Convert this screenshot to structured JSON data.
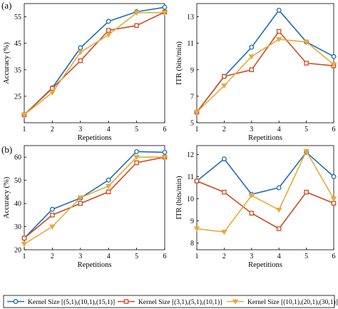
{
  "panels": [
    {
      "label": "(a)"
    },
    {
      "label": "(b)"
    }
  ],
  "legend": {
    "entries": [
      {
        "name": "Kernel Size [(5,1),(10,1),(15,1)]",
        "color": "#1f6fb2",
        "marker": "circle"
      },
      {
        "name": "Kernel Size [(3,1),(5,1),(10,1)]",
        "color": "#cc4b22",
        "marker": "square"
      },
      {
        "name": "Kernel Size [(10,1),(20,1),(30,1)]",
        "color": "#e8a93a",
        "marker": "triangle-down"
      }
    ]
  },
  "chart_data": [
    {
      "type": "line",
      "panel": "(a)",
      "xlabel": "Repetitions",
      "ylabel": "Accuracy (%)",
      "x": [
        1,
        2,
        3,
        4,
        5,
        6
      ],
      "xticks": [
        1,
        2,
        3,
        4,
        5,
        6
      ],
      "yticks": [
        25,
        35,
        45,
        55
      ],
      "ylim": [
        15,
        60
      ],
      "grid": false,
      "series": [
        {
          "name": "Kernel Size [(5,1),(10,1),(15,1)]",
          "values": [
            18,
            28.2,
            43.3,
            53.3,
            56.9,
            58.6
          ]
        },
        {
          "name": "Kernel Size [(3,1),(5,1),(10,1)]",
          "values": [
            18,
            28,
            38.4,
            49.9,
            51.7,
            56.8
          ]
        },
        {
          "name": "Kernel Size [(10,1),(20,1),(30,1)]",
          "values": [
            18,
            26.4,
            41.6,
            48.2,
            56.5,
            56.6
          ]
        }
      ]
    },
    {
      "type": "line",
      "panel": "(a)",
      "xlabel": "Repetitions",
      "ylabel": "ITR (bits/min)",
      "x": [
        1,
        2,
        3,
        4,
        5,
        6
      ],
      "xticks": [
        1,
        2,
        3,
        4,
        5,
        6
      ],
      "yticks": [
        5,
        7,
        9,
        11,
        13
      ],
      "ylim": [
        5,
        14
      ],
      "grid": false,
      "series": [
        {
          "name": "Kernel Size [(5,1),(10,1),(15,1)]",
          "values": [
            5.8,
            8.5,
            10.7,
            13.5,
            11.1,
            10.0
          ]
        },
        {
          "name": "Kernel Size [(3,1),(5,1),(10,1)]",
          "values": [
            5.8,
            8.5,
            9.0,
            11.9,
            9.5,
            9.3
          ]
        },
        {
          "name": "Kernel Size [(10,1),(20,1),(30,1)]",
          "values": [
            5.8,
            7.8,
            10.0,
            11.3,
            11.1,
            9.4
          ]
        }
      ]
    },
    {
      "type": "line",
      "panel": "(b)",
      "xlabel": "Repetitions",
      "ylabel": "Accuracy (%)",
      "x": [
        1,
        2,
        3,
        4,
        5,
        6
      ],
      "xticks": [
        1,
        2,
        3,
        4,
        5,
        6
      ],
      "yticks": [
        20,
        30,
        40,
        50,
        60
      ],
      "ylim": [
        20,
        65
      ],
      "grid": false,
      "series": [
        {
          "name": "Kernel Size [(5,1),(10,1),(15,1)]",
          "values": [
            25,
            37.5,
            42.3,
            50.1,
            62.4,
            62.1
          ]
        },
        {
          "name": "Kernel Size [(3,1),(5,1),(10,1)]",
          "values": [
            25,
            35,
            40,
            45,
            57.6,
            60
          ]
        },
        {
          "name": "Kernel Size [(10,1),(20,1),(30,1)]",
          "values": [
            22.5,
            30,
            42.5,
            47.5,
            60,
            60
          ]
        }
      ]
    },
    {
      "type": "line",
      "panel": "(b)",
      "xlabel": "Repetitions",
      "ylabel": "ITR (bits/min)",
      "x": [
        1,
        2,
        3,
        4,
        5,
        6
      ],
      "xticks": [
        1,
        2,
        3,
        4,
        5,
        6
      ],
      "yticks": [
        8,
        9,
        10,
        11,
        12
      ],
      "ylim": [
        7.7,
        12.4
      ],
      "grid": false,
      "series": [
        {
          "name": "Kernel Size [(5,1),(10,1),(15,1)]",
          "values": [
            10.8,
            11.8,
            10.2,
            10.5,
            12.1,
            11.0
          ]
        },
        {
          "name": "Kernel Size [(3,1),(5,1),(10,1)]",
          "values": [
            10.8,
            10.3,
            9.35,
            8.65,
            10.3,
            9.8
          ]
        },
        {
          "name": "Kernel Size [(10,1),(20,1),(30,1)]",
          "values": [
            8.65,
            8.5,
            10.15,
            9.5,
            12.15,
            10.0
          ]
        }
      ]
    }
  ]
}
